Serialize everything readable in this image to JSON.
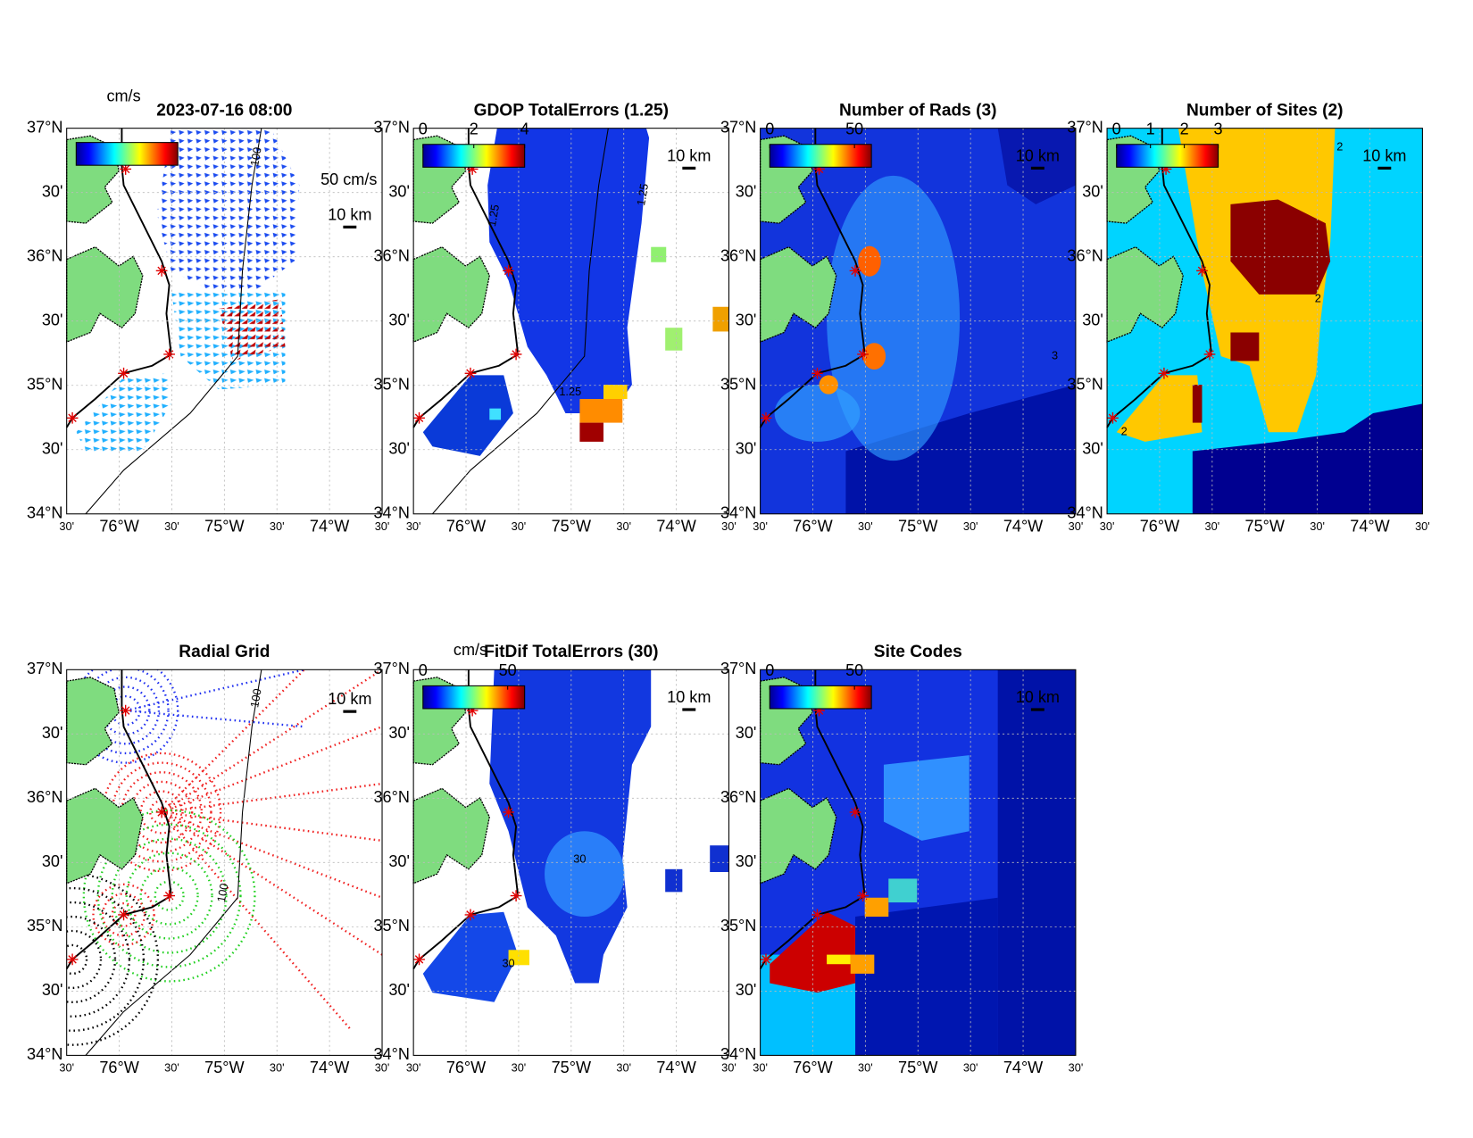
{
  "axes": {
    "lat_labels": [
      "37°N",
      "30'",
      "36°N",
      "30'",
      "35°N",
      "30'",
      "34°N"
    ],
    "lon_labels": [
      "30'",
      "76°W",
      "30'",
      "75°W",
      "30'",
      "74°W",
      "30'"
    ]
  },
  "panels": [
    {
      "title": "2023-07-16 08:00",
      "colorbar_label": "cm/s",
      "vector_scale": "50 cm/s",
      "scale_bar": "10 km",
      "contour_labels": [
        "100"
      ]
    },
    {
      "title": "GDOP TotalErrors (1.25)",
      "clim": [
        0,
        4
      ],
      "cticks": [
        0,
        2,
        4
      ],
      "scale_bar": "10 km",
      "contour_labels": [
        "1.25",
        "1.25",
        "1.25"
      ]
    },
    {
      "title": "Number of Rads (3)",
      "clim": [
        0,
        60
      ],
      "cticks": [
        0,
        50
      ],
      "scale_bar": "10 km",
      "contour_labels": [
        "3"
      ]
    },
    {
      "title": "Number of Sites (2)",
      "clim": [
        0,
        3
      ],
      "cticks": [
        0,
        1,
        2,
        3
      ],
      "scale_bar": "10 km",
      "contour_labels": [
        "2",
        "2",
        "2"
      ]
    },
    {
      "title": "Radial Grid",
      "scale_bar": "10 km",
      "contour_labels": [
        "100",
        "100"
      ]
    },
    {
      "title": "FitDif TotalErrors (30)",
      "colorbar_label": "cm/s",
      "clim": [
        0,
        60
      ],
      "cticks": [
        0,
        50
      ],
      "scale_bar": "10 km",
      "contour_labels": [
        "30",
        "30"
      ]
    },
    {
      "title": "Site Codes",
      "clim": [
        0,
        60
      ],
      "cticks": [
        0,
        50
      ],
      "scale_bar": "10 km"
    }
  ]
}
